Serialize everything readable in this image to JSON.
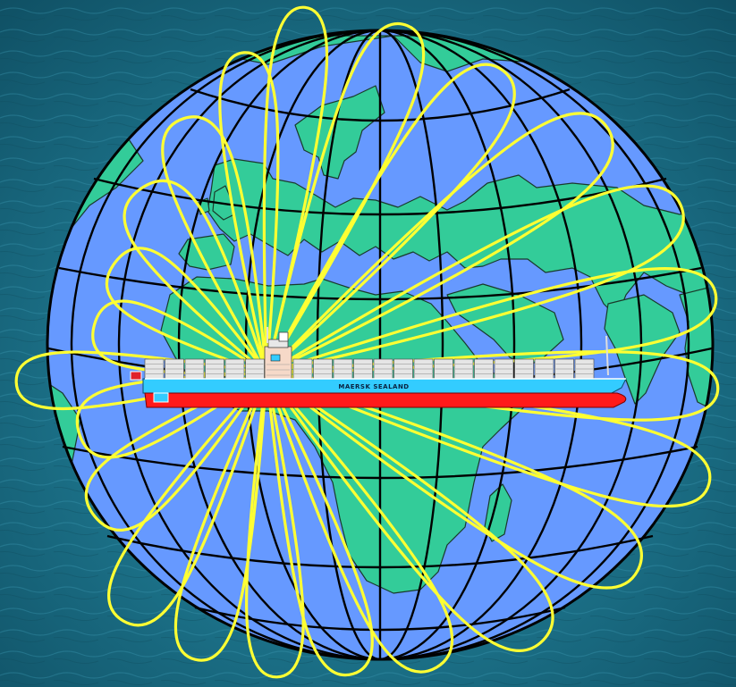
{
  "colors": {
    "ocean": "#6699ff",
    "land": "#33cc99",
    "grid": "#000000",
    "orbit": "#ffff33",
    "sea_background": "#1b6f86",
    "hull_red": "#ff1a1a",
    "hull_cyan": "#33ccff"
  },
  "ship": {
    "name": "MAERSK SEALAND"
  }
}
